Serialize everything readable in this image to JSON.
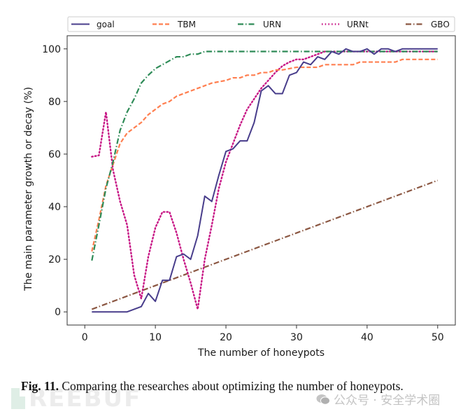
{
  "chart_data": {
    "type": "line",
    "title": "",
    "xlabel": "The number of honeypots",
    "ylabel": "The main parameter growth or decay (%)",
    "xlim": [
      -2.5,
      52.5
    ],
    "ylim": [
      -5,
      105
    ],
    "xticks": [
      0,
      10,
      20,
      30,
      40,
      50
    ],
    "yticks": [
      0,
      20,
      40,
      60,
      80,
      100
    ],
    "grid": false,
    "legend_position": "top",
    "x": [
      1,
      2,
      3,
      4,
      5,
      6,
      7,
      8,
      9,
      10,
      11,
      12,
      13,
      14,
      15,
      16,
      17,
      18,
      19,
      20,
      21,
      22,
      23,
      24,
      25,
      26,
      27,
      28,
      29,
      30,
      31,
      32,
      33,
      34,
      35,
      36,
      37,
      38,
      39,
      40,
      41,
      42,
      43,
      44,
      45,
      46,
      47,
      48,
      49,
      50
    ],
    "series": [
      {
        "name": "goal",
        "color": "#483d8b",
        "style": "solid",
        "values": [
          0,
          0,
          0,
          0,
          0,
          0,
          1,
          2,
          7,
          4,
          12,
          12,
          21,
          22,
          20,
          29,
          44,
          42,
          52,
          61,
          62,
          65,
          65,
          72,
          84,
          86,
          83,
          83,
          90,
          91,
          95,
          94,
          97,
          96,
          99,
          98,
          100,
          99,
          99,
          100,
          98,
          100,
          100,
          99,
          100,
          100,
          100,
          100,
          100,
          100
        ]
      },
      {
        "name": "TBM",
        "color": "#ff7f50",
        "style": "dashed",
        "values": [
          23,
          35,
          48,
          56,
          64,
          68,
          70,
          72,
          75,
          77,
          79,
          80,
          82,
          83,
          84,
          85,
          86,
          87,
          87.5,
          88,
          89,
          89,
          90,
          90,
          91,
          91,
          92,
          92,
          92.5,
          93,
          93,
          93,
          93,
          94,
          94,
          94,
          94,
          94,
          95,
          95,
          95,
          95,
          95,
          95,
          96,
          96,
          96,
          96,
          96,
          96
        ]
      },
      {
        "name": "URN",
        "color": "#2e8b57",
        "style": "dashdot",
        "values": [
          19.5,
          33,
          47,
          57,
          69,
          76,
          81,
          87,
          90,
          92.5,
          94,
          95.5,
          97,
          97,
          98,
          98,
          99,
          99,
          99,
          99,
          99,
          99,
          99,
          99,
          99,
          99,
          99,
          99,
          99,
          99,
          99,
          99,
          99,
          99,
          99,
          99,
          99,
          99,
          99,
          99,
          99,
          99,
          99,
          99,
          99,
          99,
          99,
          99,
          99,
          99
        ]
      },
      {
        "name": "URNt",
        "color": "#c71585",
        "style": "dotted",
        "values": [
          59,
          59.5,
          76,
          54,
          42,
          33,
          14,
          5,
          21,
          32,
          38,
          38,
          30,
          20,
          11,
          1,
          20,
          33,
          47,
          57,
          64,
          71,
          77,
          81,
          85,
          88,
          91,
          93.5,
          95,
          96,
          96,
          97,
          98,
          99,
          99,
          99,
          99,
          99,
          99,
          99,
          99,
          99,
          99,
          99,
          99,
          99,
          99,
          99,
          99,
          99
        ]
      },
      {
        "name": "GBO",
        "color": "#8b5742",
        "style": "dashdot",
        "values": [
          1,
          2,
          3,
          4,
          5,
          6,
          7,
          8,
          9,
          10,
          11,
          12,
          13,
          14,
          15,
          16,
          17,
          18,
          19,
          20,
          21,
          22,
          23,
          24,
          25,
          26,
          27,
          28,
          29,
          30,
          31,
          32,
          33,
          34,
          35,
          36,
          37,
          38,
          39,
          40,
          41,
          42,
          43,
          44,
          45,
          46,
          47,
          48,
          49,
          50
        ]
      }
    ]
  },
  "caption": {
    "fig_number": "Fig. 11.",
    "text": " Comparing the researches about optimizing the number of honeypots."
  },
  "watermarks": {
    "brand": "REEBUF",
    "wechat": "公众号 · 安全学术圈"
  }
}
